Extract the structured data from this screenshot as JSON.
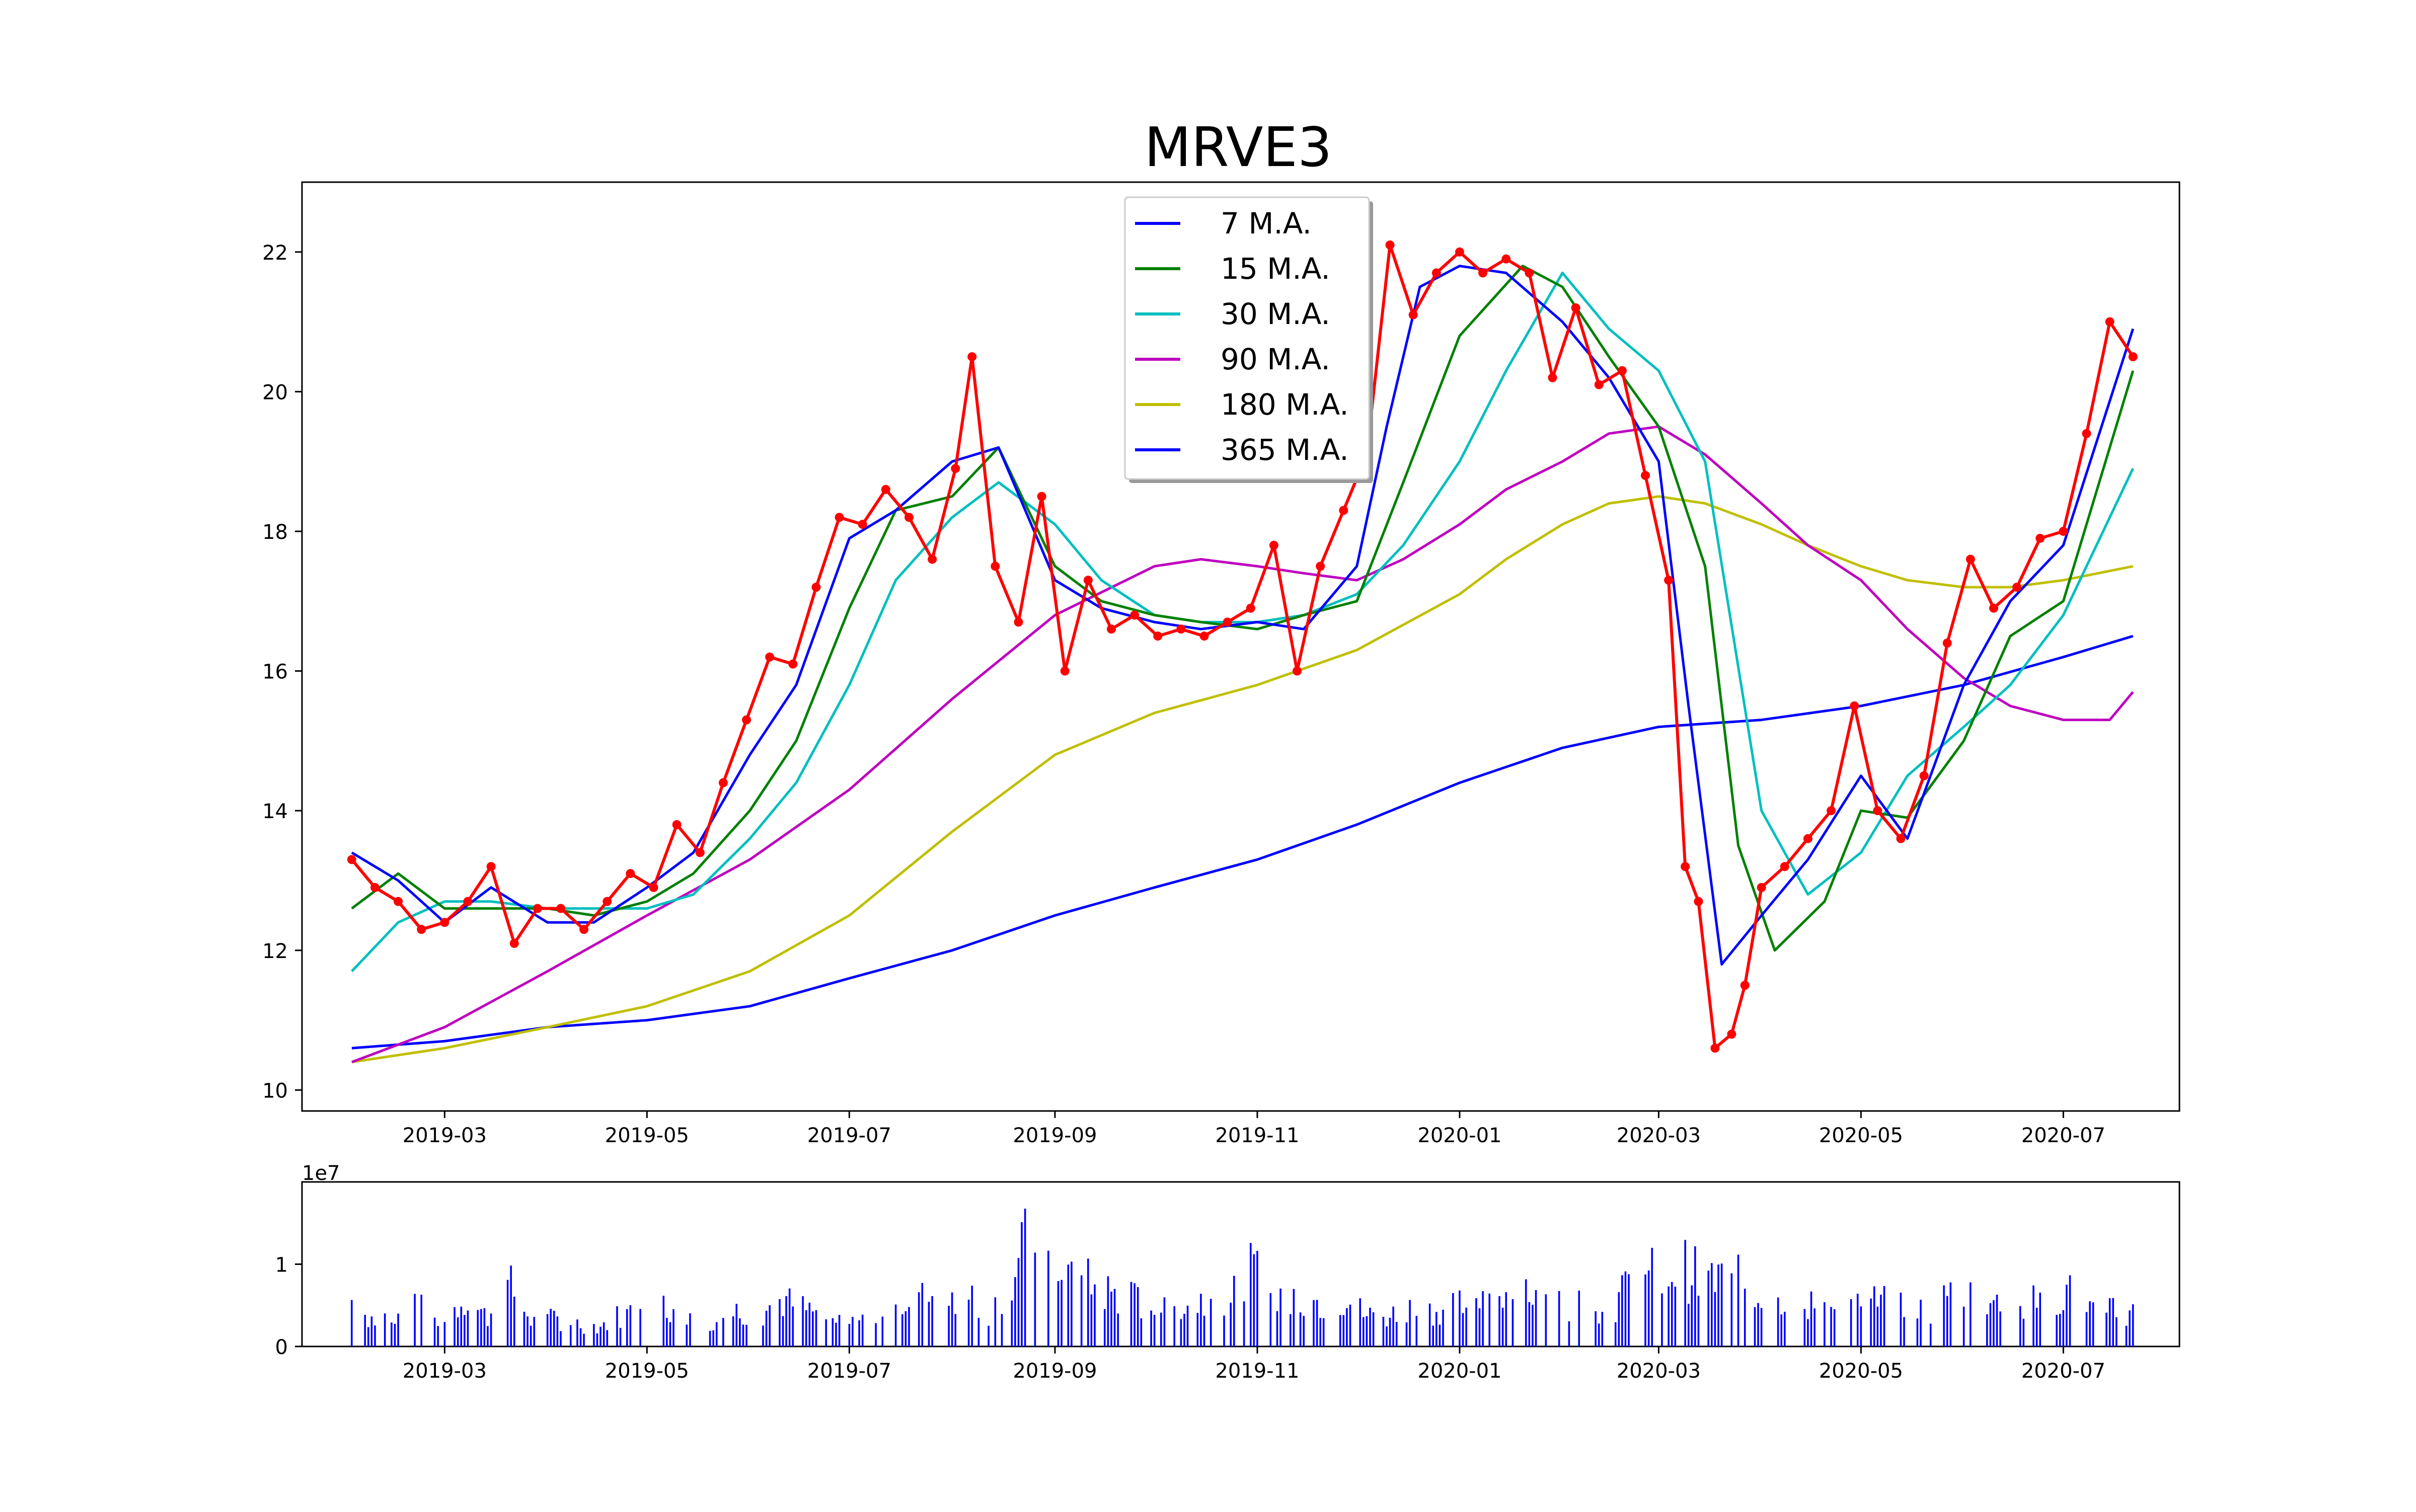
{
  "chart_data": [
    {
      "type": "line",
      "title": "MRVE3",
      "xlabel": "",
      "ylabel": "",
      "x_range": [
        "2019-01-17",
        "2020-08-05"
      ],
      "ylim": [
        9.7,
        23.0
      ],
      "x_tick_labels": [
        {
          "date": "2019-03-01",
          "label": "2019-03"
        },
        {
          "date": "2019-05-01",
          "label": "2019-05"
        },
        {
          "date": "2019-07-01",
          "label": "2019-07"
        },
        {
          "date": "2019-09-01",
          "label": "2019-09"
        },
        {
          "date": "2019-11-01",
          "label": "2019-11"
        },
        {
          "date": "2020-01-01",
          "label": "2020-01"
        },
        {
          "date": "2020-03-01",
          "label": "2020-03"
        },
        {
          "date": "2020-05-01",
          "label": "2020-05"
        },
        {
          "date": "2020-07-01",
          "label": "2020-07"
        }
      ],
      "y_ticks": [
        10,
        12,
        14,
        16,
        18,
        20,
        22
      ],
      "grid": false,
      "legend_position": "top-center",
      "legend": [
        {
          "label": "7 M.A.",
          "color": "#0000ff"
        },
        {
          "label": "15 M.A.",
          "color": "#008000"
        },
        {
          "label": "30 M.A.",
          "color": "#00bfbf"
        },
        {
          "label": "90 M.A.",
          "color": "#bf00bf"
        },
        {
          "label": "180 M.A.",
          "color": "#bfbf00"
        },
        {
          "label": "365 M.A.",
          "color": "#0000ff"
        }
      ],
      "price": {
        "color": "#ff0000",
        "dates": [
          "2019-02-01",
          "2019-02-08",
          "2019-02-15",
          "2019-02-22",
          "2019-03-01",
          "2019-03-08",
          "2019-03-15",
          "2019-03-22",
          "2019-03-29",
          "2019-04-05",
          "2019-04-12",
          "2019-04-19",
          "2019-04-26",
          "2019-05-03",
          "2019-05-10",
          "2019-05-17",
          "2019-05-24",
          "2019-05-31",
          "2019-06-07",
          "2019-06-14",
          "2019-06-21",
          "2019-06-28",
          "2019-07-05",
          "2019-07-12",
          "2019-07-19",
          "2019-07-26",
          "2019-08-02",
          "2019-08-07",
          "2019-08-14",
          "2019-08-21",
          "2019-08-28",
          "2019-09-04",
          "2019-09-11",
          "2019-09-18",
          "2019-09-25",
          "2019-10-02",
          "2019-10-09",
          "2019-10-16",
          "2019-10-23",
          "2019-10-30",
          "2019-11-06",
          "2019-11-13",
          "2019-11-20",
          "2019-11-27",
          "2019-12-04",
          "2019-12-11",
          "2019-12-18",
          "2019-12-25",
          "2020-01-01",
          "2020-01-08",
          "2020-01-15",
          "2020-01-22",
          "2020-01-29",
          "2020-02-05",
          "2020-02-12",
          "2020-02-19",
          "2020-02-26",
          "2020-03-04",
          "2020-03-09",
          "2020-03-13",
          "2020-03-18",
          "2020-03-23",
          "2020-03-27",
          "2020-04-01",
          "2020-04-08",
          "2020-04-15",
          "2020-04-22",
          "2020-04-29",
          "2020-05-06",
          "2020-05-13",
          "2020-05-20",
          "2020-05-27",
          "2020-06-03",
          "2020-06-10",
          "2020-06-17",
          "2020-06-24",
          "2020-07-01",
          "2020-07-08",
          "2020-07-15",
          "2020-07-22"
        ],
        "values": [
          13.3,
          12.9,
          12.7,
          12.3,
          12.4,
          12.7,
          13.2,
          12.1,
          12.6,
          12.6,
          12.3,
          12.7,
          13.1,
          12.9,
          13.8,
          13.4,
          14.4,
          15.3,
          16.2,
          16.1,
          17.2,
          18.2,
          18.1,
          18.6,
          18.2,
          17.6,
          18.9,
          20.5,
          17.5,
          16.7,
          18.5,
          16.0,
          17.3,
          16.6,
          16.8,
          16.5,
          16.6,
          16.5,
          16.7,
          16.9,
          17.8,
          16.0,
          17.5,
          18.3,
          19.1,
          22.1,
          21.1,
          21.7,
          22.0,
          21.7,
          21.9,
          21.7,
          20.2,
          21.2,
          20.1,
          20.3,
          18.8,
          17.3,
          13.2,
          12.7,
          10.6,
          10.8,
          11.5,
          12.9,
          13.2,
          13.6,
          14.0,
          15.5,
          14.0,
          13.6,
          14.5,
          16.4,
          17.6,
          16.9,
          17.2,
          17.9,
          18.0,
          19.4,
          21.0,
          20.5
        ]
      },
      "moving_averages": [
        {
          "label": "7 M.A.",
          "color": "#0000ff",
          "x": [
            "2019-02-01",
            "2019-02-15",
            "2019-03-01",
            "2019-03-15",
            "2019-04-01",
            "2019-04-15",
            "2019-05-01",
            "2019-05-15",
            "2019-06-01",
            "2019-06-15",
            "2019-07-01",
            "2019-07-15",
            "2019-08-01",
            "2019-08-15",
            "2019-09-01",
            "2019-09-15",
            "2019-10-01",
            "2019-10-15",
            "2019-11-01",
            "2019-11-15",
            "2019-12-01",
            "2019-12-10",
            "2019-12-20",
            "2020-01-01",
            "2020-01-15",
            "2020-02-01",
            "2020-02-15",
            "2020-03-01",
            "2020-03-10",
            "2020-03-20",
            "2020-04-01",
            "2020-04-15",
            "2020-05-01",
            "2020-05-15",
            "2020-06-01",
            "2020-06-15",
            "2020-07-01",
            "2020-07-22"
          ],
          "y": [
            13.4,
            13.0,
            12.4,
            12.9,
            12.4,
            12.4,
            12.9,
            13.4,
            14.8,
            15.8,
            17.9,
            18.3,
            19.0,
            19.2,
            17.3,
            16.9,
            16.7,
            16.6,
            16.7,
            16.6,
            17.5,
            19.5,
            21.5,
            21.8,
            21.7,
            21.0,
            20.2,
            19.0,
            15.5,
            11.8,
            12.5,
            13.3,
            14.5,
            13.6,
            15.8,
            17.0,
            17.8,
            20.9
          ]
        },
        {
          "label": "15 M.A.",
          "color": "#008000",
          "x": [
            "2019-02-01",
            "2019-02-15",
            "2019-03-01",
            "2019-03-15",
            "2019-04-01",
            "2019-04-15",
            "2019-05-01",
            "2019-05-15",
            "2019-06-01",
            "2019-06-15",
            "2019-07-01",
            "2019-07-15",
            "2019-08-01",
            "2019-08-15",
            "2019-09-01",
            "2019-09-15",
            "2019-10-01",
            "2019-10-15",
            "2019-11-01",
            "2019-11-15",
            "2019-12-01",
            "2019-12-15",
            "2020-01-01",
            "2020-01-20",
            "2020-02-01",
            "2020-02-15",
            "2020-03-01",
            "2020-03-15",
            "2020-03-25",
            "2020-04-05",
            "2020-04-20",
            "2020-05-01",
            "2020-05-15",
            "2020-06-01",
            "2020-06-15",
            "2020-07-01",
            "2020-07-22"
          ],
          "y": [
            12.6,
            13.1,
            12.6,
            12.6,
            12.6,
            12.5,
            12.7,
            13.1,
            14.0,
            15.0,
            16.9,
            18.3,
            18.5,
            19.2,
            17.5,
            17.0,
            16.8,
            16.7,
            16.6,
            16.8,
            17.0,
            18.7,
            20.8,
            21.8,
            21.5,
            20.5,
            19.5,
            17.5,
            13.5,
            12.0,
            12.7,
            14.0,
            13.9,
            15.0,
            16.5,
            17.0,
            20.3
          ]
        },
        {
          "label": "30 M.A.",
          "color": "#00bfbf",
          "x": [
            "2019-02-01",
            "2019-02-15",
            "2019-03-01",
            "2019-03-15",
            "2019-04-01",
            "2019-04-15",
            "2019-05-01",
            "2019-05-15",
            "2019-06-01",
            "2019-06-15",
            "2019-07-01",
            "2019-07-15",
            "2019-08-01",
            "2019-08-15",
            "2019-09-01",
            "2019-09-15",
            "2019-10-01",
            "2019-10-15",
            "2019-11-01",
            "2019-11-15",
            "2019-12-01",
            "2019-12-15",
            "2020-01-01",
            "2020-01-15",
            "2020-02-01",
            "2020-02-15",
            "2020-03-01",
            "2020-03-15",
            "2020-04-01",
            "2020-04-15",
            "2020-05-01",
            "2020-05-15",
            "2020-06-01",
            "2020-06-15",
            "2020-07-01",
            "2020-07-22"
          ],
          "y": [
            11.7,
            12.4,
            12.7,
            12.7,
            12.6,
            12.6,
            12.6,
            12.8,
            13.6,
            14.4,
            15.8,
            17.3,
            18.2,
            18.7,
            18.1,
            17.3,
            16.8,
            16.7,
            16.7,
            16.8,
            17.1,
            17.8,
            19.0,
            20.3,
            21.7,
            20.9,
            20.3,
            19.0,
            14.0,
            12.8,
            13.4,
            14.5,
            15.2,
            15.8,
            16.8,
            18.9
          ]
        },
        {
          "label": "90 M.A.",
          "color": "#bf00bf",
          "x": [
            "2019-02-01",
            "2019-03-01",
            "2019-04-01",
            "2019-05-01",
            "2019-06-01",
            "2019-07-01",
            "2019-08-01",
            "2019-09-01",
            "2019-10-01",
            "2019-10-15",
            "2019-11-01",
            "2019-11-15",
            "2019-12-01",
            "2019-12-15",
            "2020-01-01",
            "2020-01-15",
            "2020-02-01",
            "2020-02-15",
            "2020-03-01",
            "2020-03-15",
            "2020-04-01",
            "2020-04-15",
            "2020-05-01",
            "2020-05-15",
            "2020-06-01",
            "2020-06-15",
            "2020-07-01",
            "2020-07-15",
            "2020-07-22"
          ],
          "y": [
            10.4,
            10.9,
            11.7,
            12.5,
            13.3,
            14.3,
            15.6,
            16.8,
            17.5,
            17.6,
            17.5,
            17.4,
            17.3,
            17.6,
            18.1,
            18.6,
            19.0,
            19.4,
            19.5,
            19.1,
            18.4,
            17.8,
            17.3,
            16.6,
            15.9,
            15.5,
            15.3,
            15.3,
            15.7
          ]
        },
        {
          "label": "180 M.A.",
          "color": "#bfbf00",
          "x": [
            "2019-02-01",
            "2019-03-01",
            "2019-04-01",
            "2019-05-01",
            "2019-06-01",
            "2019-07-01",
            "2019-08-01",
            "2019-09-01",
            "2019-10-01",
            "2019-11-01",
            "2019-12-01",
            "2020-01-01",
            "2020-01-15",
            "2020-02-01",
            "2020-02-15",
            "2020-03-01",
            "2020-03-15",
            "2020-04-01",
            "2020-04-15",
            "2020-05-01",
            "2020-05-15",
            "2020-06-01",
            "2020-06-15",
            "2020-07-01",
            "2020-07-22"
          ],
          "y": [
            10.4,
            10.6,
            10.9,
            11.2,
            11.7,
            12.5,
            13.7,
            14.8,
            15.4,
            15.8,
            16.3,
            17.1,
            17.6,
            18.1,
            18.4,
            18.5,
            18.4,
            18.1,
            17.8,
            17.5,
            17.3,
            17.2,
            17.2,
            17.3,
            17.5
          ]
        },
        {
          "label": "365 M.A.",
          "color": "#0000ff",
          "x": [
            "2019-02-01",
            "2019-03-01",
            "2019-04-01",
            "2019-05-01",
            "2019-06-01",
            "2019-07-01",
            "2019-08-01",
            "2019-09-01",
            "2019-10-01",
            "2019-11-01",
            "2019-12-01",
            "2020-01-01",
            "2020-02-01",
            "2020-03-01",
            "2020-04-01",
            "2020-05-01",
            "2020-06-01",
            "2020-07-01",
            "2020-07-22"
          ],
          "y": [
            10.6,
            10.7,
            10.9,
            11.0,
            11.2,
            11.6,
            12.0,
            12.5,
            12.9,
            13.3,
            13.8,
            14.4,
            14.9,
            15.2,
            15.3,
            15.5,
            15.8,
            16.2,
            16.5
          ]
        }
      ]
    },
    {
      "type": "bar",
      "title": "",
      "xlabel": "",
      "ylabel": "",
      "scale_label": "1e7",
      "ylim": [
        0,
        2.0
      ],
      "y_ticks": [
        0,
        1
      ],
      "color": "#0000ff",
      "start_date": "2019-02-01",
      "end_date": "2020-07-22",
      "values_1e7": [
        0.55,
        0.32,
        0.41,
        0.48,
        0.28,
        0.62,
        0.36,
        0.75,
        0.3,
        0.34,
        0.29,
        0.25,
        0.41,
        0.35,
        0.52,
        0.33,
        0.3,
        0.45,
        0.4,
        0.58,
        0.47,
        0.36,
        0.29,
        0.38,
        0.5,
        0.63,
        0.58,
        0.72,
        0.41,
        0.52,
        1.35,
        1.08,
        0.88,
        0.73,
        0.64,
        0.55,
        0.48,
        0.49,
        0.62,
        0.58,
        0.95,
        0.49,
        0.64,
        0.55,
        0.6,
        0.39,
        0.38,
        0.48,
        0.44,
        0.56,
        0.51,
        0.75,
        0.78,
        0.49,
        0.55,
        0.4,
        0.49,
        0.92,
        0.85,
        1.0,
        0.79,
        0.87,
        0.73,
        0.63,
        0.58,
        0.51,
        0.46,
        0.58,
        0.53,
        0.45,
        0.41,
        0.72,
        0.69,
        0.52,
        0.63,
        0.49,
        0.7,
        0.45,
        0.54,
        0.4
      ]
    }
  ]
}
